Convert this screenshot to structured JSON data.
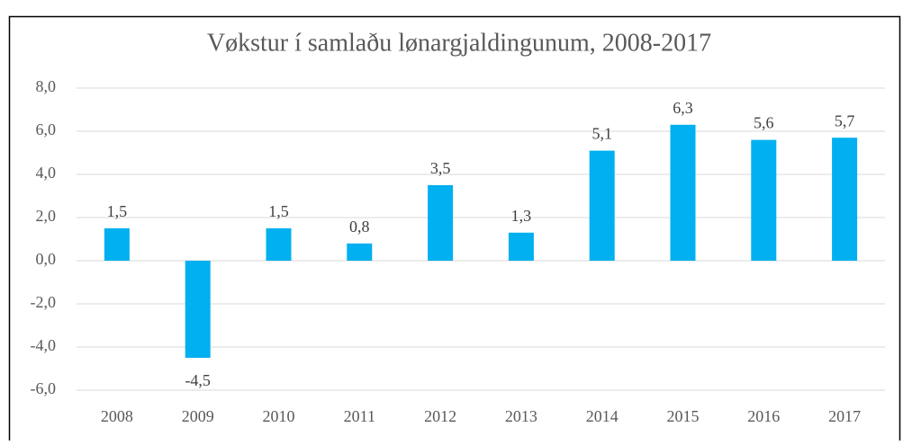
{
  "chart_data": {
    "type": "bar",
    "title": "Vøkstur í samlaðu lønargjaldingunum, 2008-2017",
    "categories": [
      "2008",
      "2009",
      "2010",
      "2011",
      "2012",
      "2013",
      "2014",
      "2015",
      "2016",
      "2017"
    ],
    "values": [
      1.5,
      -4.5,
      1.5,
      0.8,
      3.5,
      1.3,
      5.1,
      6.3,
      5.6,
      5.7
    ],
    "value_labels": [
      "1,5",
      "-4,5",
      "1,5",
      "0,8",
      "3,5",
      "1,3",
      "5,1",
      "6,3",
      "5,6",
      "5,7"
    ],
    "color": "#00b0f0",
    "ylim": [
      -6,
      8
    ],
    "yticks": [
      {
        "value": -6,
        "label": "-6,0"
      },
      {
        "value": -4,
        "label": "-4,0"
      },
      {
        "value": -2,
        "label": "-2,0"
      },
      {
        "value": 0,
        "label": "0,0"
      },
      {
        "value": 2,
        "label": "2,0"
      },
      {
        "value": 4,
        "label": "4,0"
      },
      {
        "value": 6,
        "label": "6,0"
      },
      {
        "value": 8,
        "label": "8,0"
      }
    ],
    "grid": true
  }
}
